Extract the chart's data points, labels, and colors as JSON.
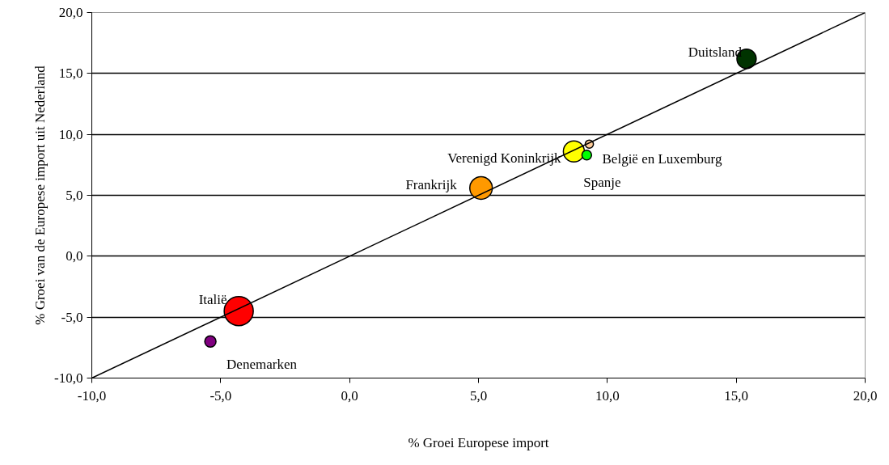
{
  "chart_data": {
    "type": "bubble",
    "xlabel": "% Groei Europese import",
    "ylabel": "% Groei van de Europese import uit Nederland",
    "xlim": [
      -10,
      20
    ],
    "ylim": [
      -10,
      20
    ],
    "xticks": [
      {
        "value": -10,
        "label": "-10,0"
      },
      {
        "value": -5,
        "label": "-5,0"
      },
      {
        "value": 0,
        "label": "0,0"
      },
      {
        "value": 5,
        "label": "5,0"
      },
      {
        "value": 10,
        "label": "10,0"
      },
      {
        "value": 15,
        "label": "15,0"
      },
      {
        "value": 20,
        "label": "20,0"
      }
    ],
    "yticks": [
      {
        "value": -10,
        "label": "-10,0"
      },
      {
        "value": -5,
        "label": "-5,0"
      },
      {
        "value": 0,
        "label": "0,0"
      },
      {
        "value": 5,
        "label": "5,0"
      },
      {
        "value": 10,
        "label": "10,0"
      },
      {
        "value": 15,
        "label": "15,0"
      },
      {
        "value": 20,
        "label": "20,0"
      }
    ],
    "grid": "y",
    "series": [
      {
        "name": "Duitsland",
        "color": "#003300",
        "x": [
          15.4
        ],
        "values": [
          16.2
        ],
        "sizes": [
          0.44
        ]
      },
      {
        "name": "Verenigd Koninkrijk",
        "color": "#ffff00",
        "x": [
          8.7
        ],
        "values": [
          8.6
        ],
        "sizes": [
          0.52
        ]
      },
      {
        "name": "België en Luxemburg",
        "color": "#ffcc99",
        "x": [
          9.3
        ],
        "values": [
          9.2
        ],
        "sizes": [
          0.08
        ]
      },
      {
        "name": "Spanje",
        "color": "#00ff00",
        "x": [
          9.2
        ],
        "values": [
          8.3
        ],
        "sizes": [
          0.11
        ]
      },
      {
        "name": "Frankrijk",
        "color": "#ff9900",
        "x": [
          5.1
        ],
        "values": [
          5.6
        ],
        "sizes": [
          0.6
        ]
      },
      {
        "name": "Italië",
        "color": "#ff0000",
        "x": [
          -4.3
        ],
        "values": [
          -4.5
        ],
        "sizes": [
          1
        ]
      },
      {
        "name": "Denemarken",
        "color": "#800080",
        "x": [
          -5.4
        ],
        "values": [
          -7.0
        ],
        "sizes": [
          0.15
        ]
      },
      {
        "type": "line",
        "color": "#000000",
        "x": [
          -10,
          20
        ],
        "values": [
          -10,
          20
        ]
      }
    ]
  }
}
